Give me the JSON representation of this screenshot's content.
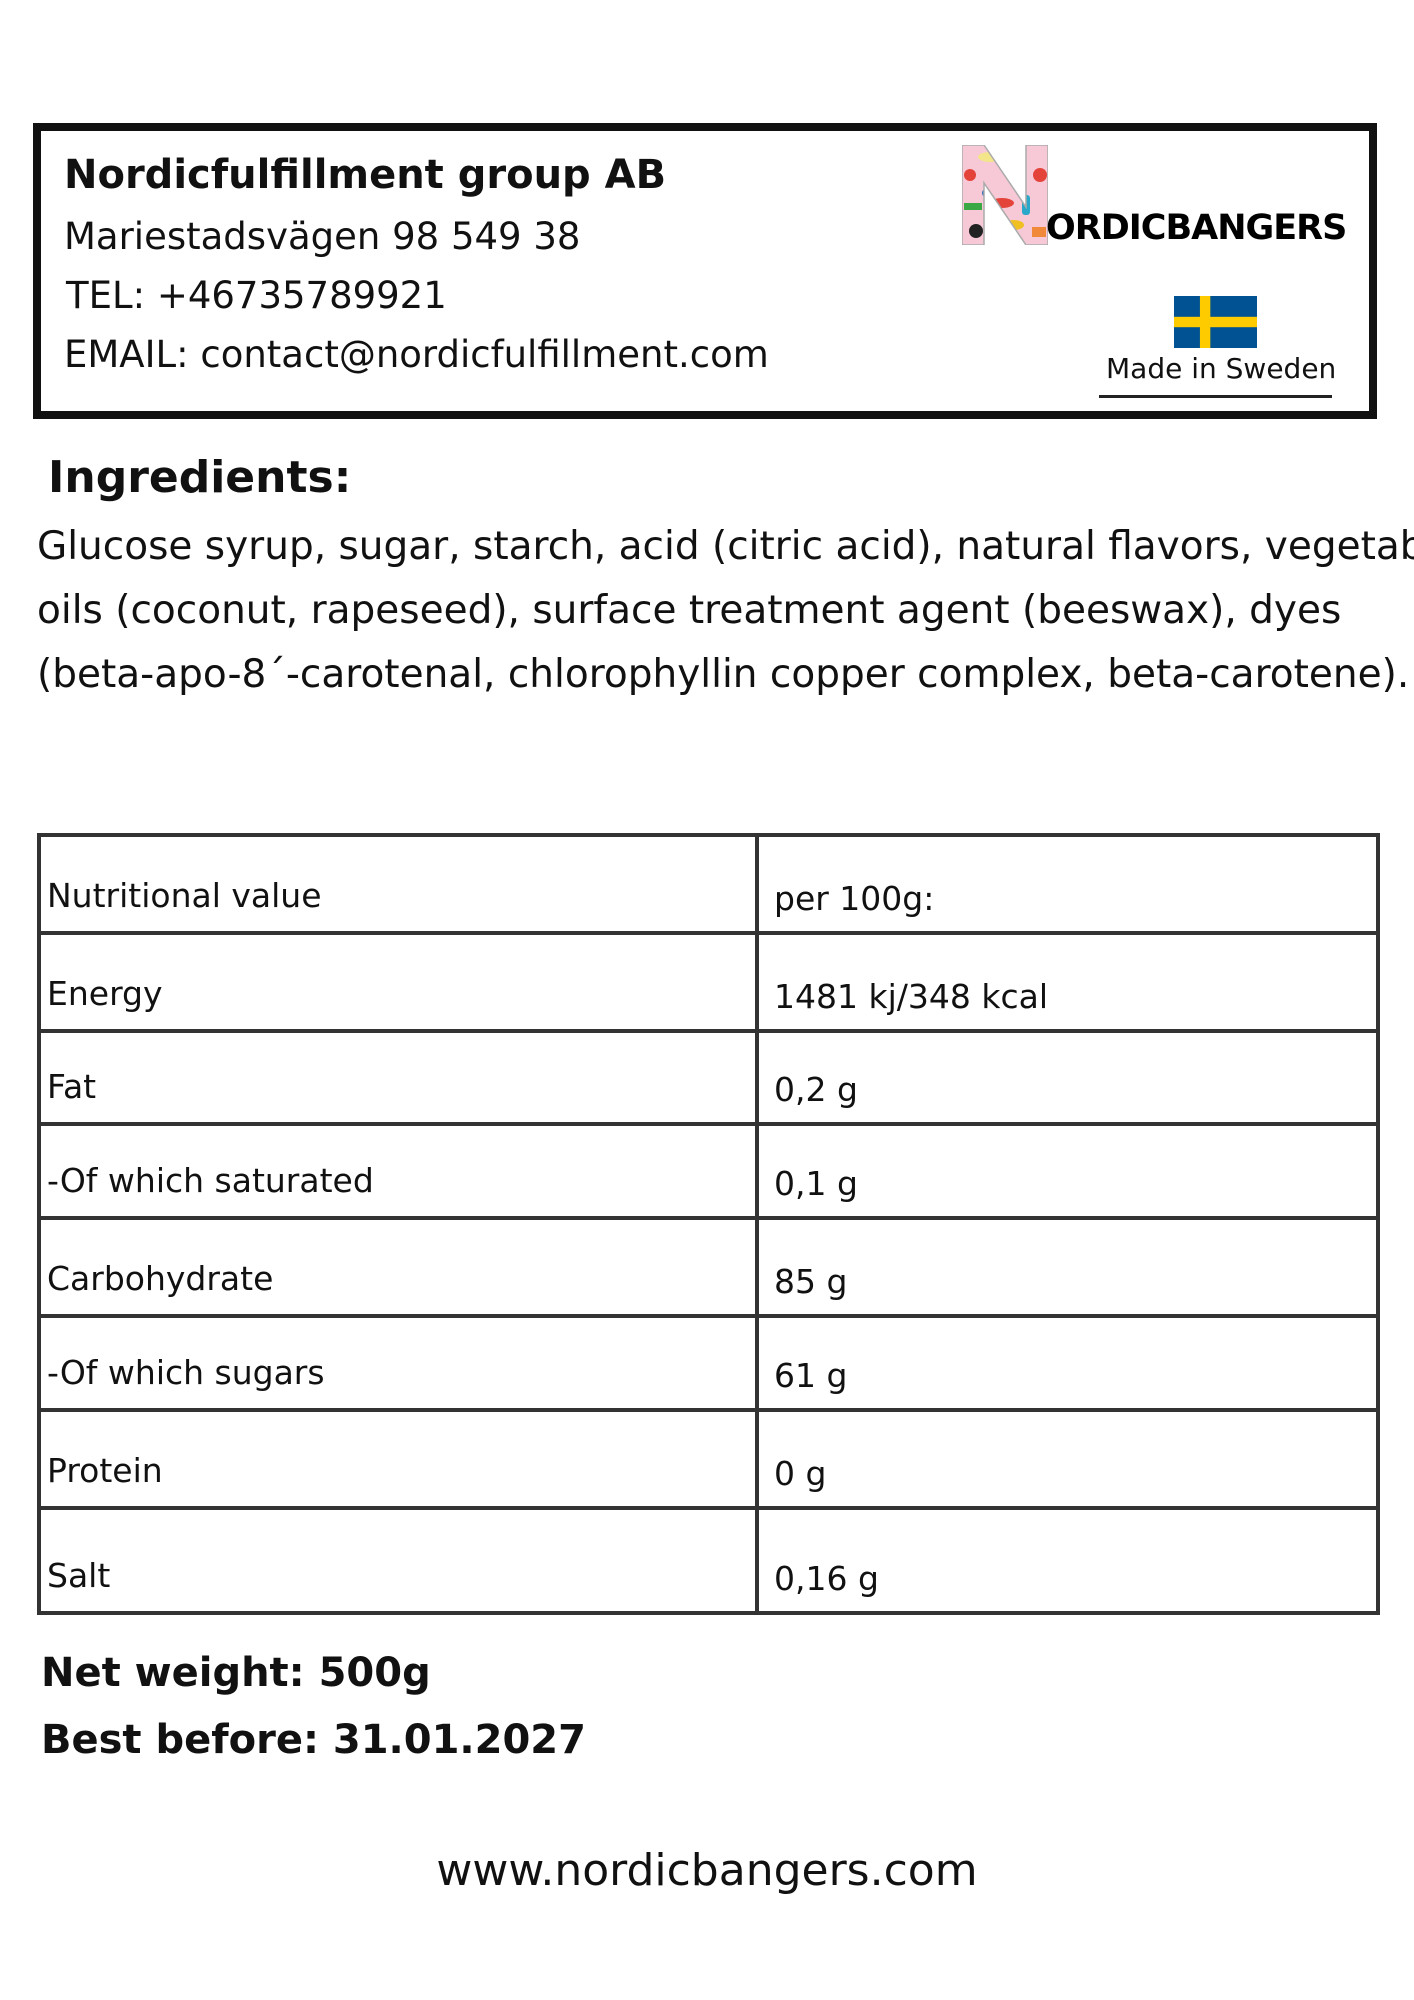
{
  "header": {
    "company": "Nordicfulfillment group AB",
    "address": "Mariestadsvägen 98 549 38",
    "tel": "TEL: +46735789921",
    "email": "EMAIL: contact@nordicfulfillment.com",
    "logo_text": "NORDICBANGERS",
    "logo_text_rest": "ORDICBANGERS",
    "made_in": "Made in Sweden",
    "flag_colors": {
      "blue": "#005293",
      "yellow": "#FECB00"
    }
  },
  "ingredients": {
    "heading": "Ingredients:",
    "lines": [
      "Glucose syrup, sugar, starch, acid (citric acid), natural flavors, vegetable",
      "oils (coconut, rapeseed), surface treatment agent (beeswax), dyes",
      "(beta-apo-8´-carotenal, chlorophyllin copper complex, beta-carotene)."
    ]
  },
  "nutrition": {
    "rows": [
      {
        "label": "Nutritional value",
        "value": "per 100g:"
      },
      {
        "label": "Energy",
        "value": "1481 kj/348 kcal"
      },
      {
        "label": "Fat",
        "value": "0,2 g"
      },
      {
        "label": "-Of which saturated",
        "value": "0,1 g"
      },
      {
        "label": "Carbohydrate",
        "value": "85 g"
      },
      {
        "label": "-Of which sugars",
        "value": "61 g"
      },
      {
        "label": "Protein",
        "value": "0 g"
      },
      {
        "label": "Salt",
        "value": "0,16 g"
      }
    ]
  },
  "footer": {
    "net_weight": "Net weight: 500g",
    "best_before": "Best before: 31.01.2027",
    "website": "www.nordicbangers.com"
  }
}
